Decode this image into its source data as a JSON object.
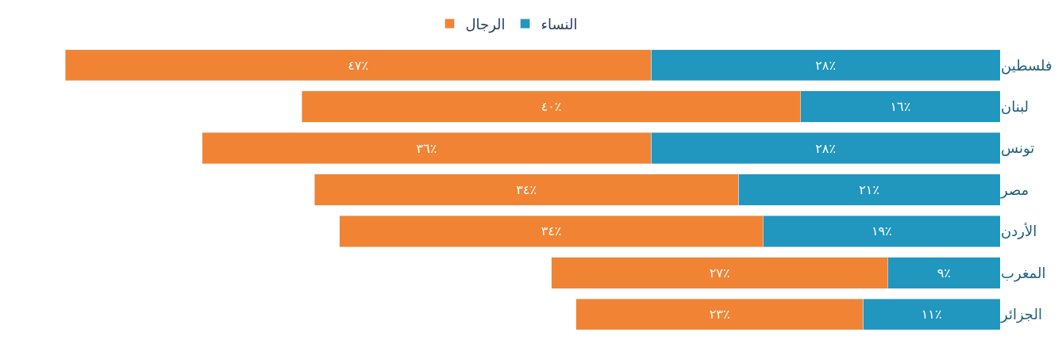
{
  "chart_data": {
    "type": "bar",
    "stacked": true,
    "orientation": "horizontal",
    "categories": [
      "فلسطين",
      "لبنان",
      "تونس",
      "مصر",
      "الأردن",
      "المغرب",
      "الجزائر"
    ],
    "series": [
      {
        "name": "النساء",
        "color": "#2196be",
        "values": [
          28,
          16,
          28,
          21,
          19,
          9,
          11
        ],
        "value_labels": [
          "٢٨٪",
          "١٦٪",
          "٢٨٪",
          "٢١٪",
          "١٩٪",
          "٩٪",
          "١١٪"
        ]
      },
      {
        "name": "الرجال",
        "color": "#f08434",
        "values": [
          47,
          40,
          36,
          34,
          34,
          27,
          23
        ],
        "value_labels": [
          "٤٧٪",
          "٤٠٪",
          "٣٦٪",
          "٣٤٪",
          "٣٤٪",
          "٢٧٪",
          "٢٣٪"
        ]
      }
    ],
    "tick_labels": "y",
    "legend": "top"
  }
}
